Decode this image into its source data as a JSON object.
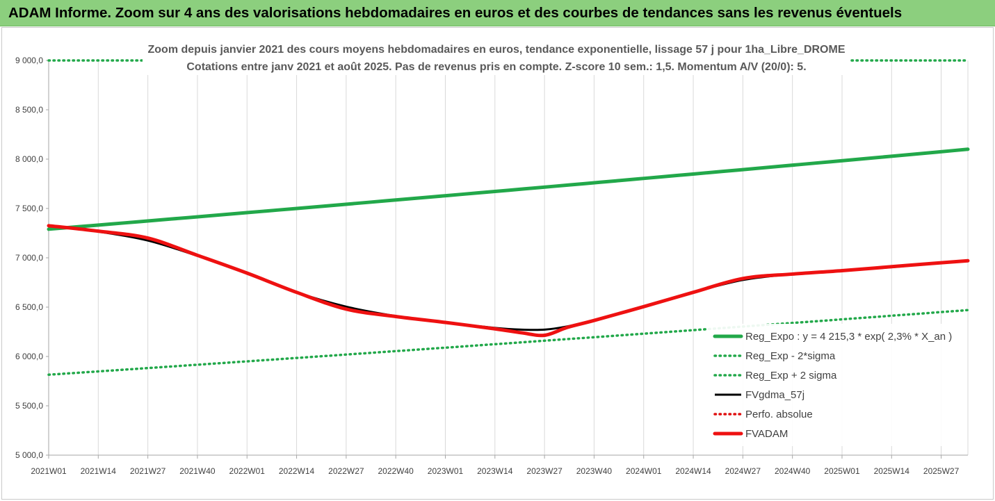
{
  "banner": {
    "title": "ADAM Informe. Zoom sur 4 ans des valorisations hebdomadaires en euros et des courbes de tendances sans les revenus éventuels"
  },
  "colors": {
    "banner_bg": "#8ccf7e",
    "reg_expo": "#22a84a",
    "reg_band": "#22a84a",
    "fvgdma": "#000000",
    "perfo": "#e01010",
    "fvadam": "#ee1111",
    "grid": "#d9d9d9"
  },
  "chart_data": {
    "type": "line",
    "title": "Zoom depuis janvier 2021 des cours moyens hebdomadaires en euros, tendance exponentielle, lissage 57 j pour 1ha_Libre_DROME",
    "subtitle": "Cotations entre janv 2021 et août 2025.  Pas de revenus pris en compte. Z-score 10 sem.: 1,5. Momentum A/V (20/0): 5.",
    "xlabel": "",
    "ylabel": "",
    "ylim": [
      5000,
      9000
    ],
    "yticks": [
      "5 000,0",
      "5 500,0",
      "6 000,0",
      "6 500,0",
      "7 000,0",
      "7 500,0",
      "8 000,0",
      "8 500,0",
      "9 000,0"
    ],
    "ytick_values": [
      5000,
      5500,
      6000,
      6500,
      7000,
      7500,
      8000,
      8500,
      9000
    ],
    "xlim": [
      0,
      241
    ],
    "xticks": [
      "2021W01",
      "2021W14",
      "2021W27",
      "2021W40",
      "2022W01",
      "2022W14",
      "2022W27",
      "2022W40",
      "2023W01",
      "2023W14",
      "2023W27",
      "2023W40",
      "2024W01",
      "2024W14",
      "2024W27",
      "2024W40",
      "2025W01",
      "2025W14",
      "2025W27"
    ],
    "xtick_index": [
      0,
      13,
      26,
      39,
      52,
      65,
      78,
      91,
      104,
      117,
      130,
      143,
      156,
      169,
      182,
      195,
      208,
      221,
      234
    ],
    "grid": "vertical",
    "legend_position": "bottom-right",
    "series": [
      {
        "name": "Reg_Expo : y = 4 215,3 * exp( 2,3% *  X_an )",
        "style": "solid-thick",
        "color": "#22a84a",
        "x": [
          0,
          241
        ],
        "y": [
          7290,
          8100
        ]
      },
      {
        "name": "Reg_Exp - 2*sigma",
        "style": "dotted",
        "color": "#22a84a",
        "x": [
          0,
          241
        ],
        "y": [
          5815,
          6470
        ]
      },
      {
        "name": "Reg_Exp + 2 sigma",
        "style": "dotted",
        "color": "#22a84a",
        "x": [
          0,
          241
        ],
        "y": [
          9000,
          9000
        ]
      },
      {
        "name": "FVgdma_57j",
        "style": "solid",
        "color": "#000000",
        "x": [
          0,
          13,
          26,
          39,
          52,
          65,
          78,
          91,
          104,
          117,
          124,
          130,
          136,
          143,
          156,
          169,
          182,
          195,
          208,
          221,
          234,
          241
        ],
        "y": [
          7320,
          7265,
          7175,
          7020,
          6845,
          6650,
          6505,
          6410,
          6345,
          6290,
          6272,
          6272,
          6305,
          6370,
          6510,
          6650,
          6775,
          6835,
          6870,
          6905,
          6950,
          6970
        ]
      },
      {
        "name": "Perfo. absolue",
        "style": "dotted",
        "color": "#e01010",
        "x": [],
        "y": []
      },
      {
        "name": "FVADAM",
        "style": "solid-thick",
        "color": "#ee1111",
        "x": [
          0,
          13,
          26,
          39,
          52,
          65,
          78,
          91,
          104,
          117,
          124,
          130,
          136,
          143,
          156,
          169,
          182,
          195,
          208,
          221,
          234,
          241
        ],
        "y": [
          7325,
          7270,
          7200,
          7025,
          6845,
          6650,
          6480,
          6405,
          6345,
          6280,
          6240,
          6215,
          6295,
          6365,
          6505,
          6650,
          6790,
          6835,
          6870,
          6910,
          6950,
          6970
        ]
      }
    ]
  }
}
